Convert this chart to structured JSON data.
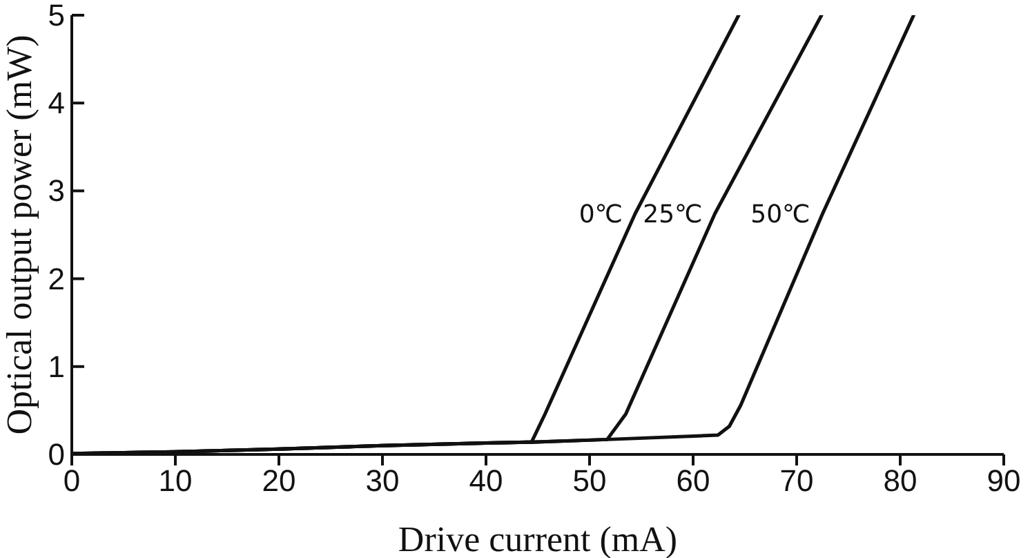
{
  "chart_data": {
    "type": "line",
    "xlabel": "Drive current (mA)",
    "ylabel": "Optical output power (mW)",
    "xlim": [
      0,
      90
    ],
    "xticks": [
      0,
      10,
      20,
      30,
      40,
      50,
      60,
      70,
      80,
      90
    ],
    "ylim": [
      0,
      5
    ],
    "yticks": [
      0,
      1,
      2,
      3,
      4,
      5
    ],
    "marker": "none",
    "line_style": "solid",
    "series": [
      {
        "name": "0℃",
        "color": "#111111",
        "x": [
          0,
          10,
          20,
          30,
          40,
          44.4,
          45.7,
          54.4,
          64.4
        ],
        "values": [
          0.01,
          0.03,
          0.06,
          0.1,
          0.13,
          0.14,
          0.46,
          2.74,
          5
        ]
      },
      {
        "name": "25℃",
        "color": "#111111",
        "x": [
          0,
          10,
          20,
          30,
          40,
          44.4,
          51.7,
          53.5,
          62.1,
          72.4
        ],
        "values": [
          0.01,
          0.03,
          0.06,
          0.1,
          0.13,
          0.14,
          0.17,
          0.46,
          2.74,
          5
        ]
      },
      {
        "name": "50℃",
        "color": "#111111",
        "x": [
          0,
          10,
          20,
          30,
          40,
          44.4,
          51.7,
          62.4,
          63.5,
          64.6,
          72.5,
          81.3
        ],
        "values": [
          0.01,
          0.03,
          0.06,
          0.1,
          0.13,
          0.14,
          0.17,
          0.22,
          0.32,
          0.56,
          2.74,
          5
        ]
      }
    ]
  }
}
